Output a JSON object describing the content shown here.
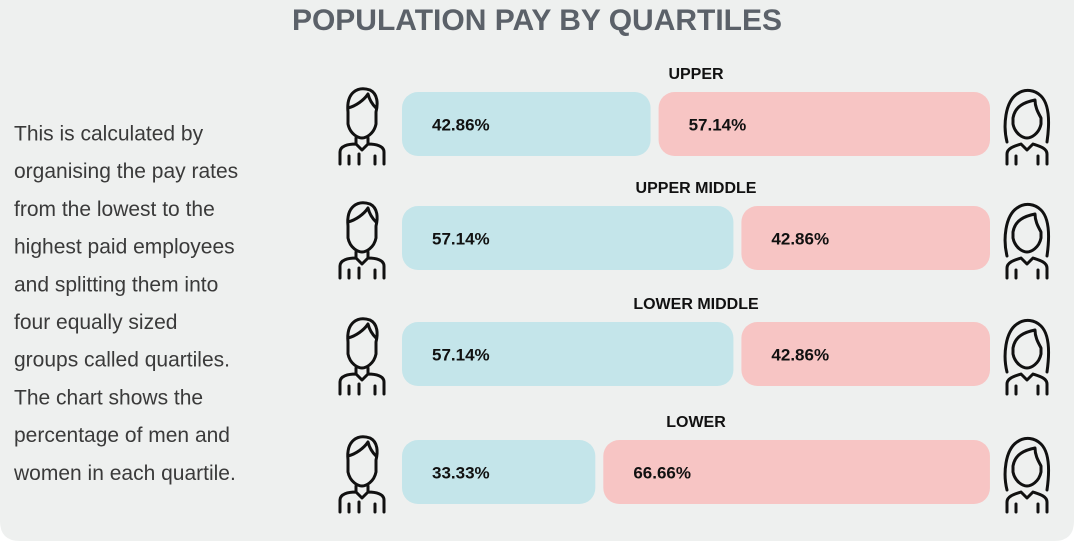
{
  "chart_data": {
    "type": "bar",
    "orientation": "horizontal",
    "stacked": true,
    "title": "POPULATION PAY BY QUARTILES",
    "description": [
      "This is calculated by",
      "organising the pay rates",
      "from the lowest to the",
      "highest paid employees",
      "and splitting them into",
      "four equally sized",
      "groups called quartiles.",
      "The chart shows the",
      "percentage of men and",
      "women in each quartile."
    ],
    "categories": [
      "UPPER",
      "UPPER MIDDLE",
      "LOWER MIDDLE",
      "LOWER"
    ],
    "xlim": [
      0,
      100
    ],
    "series": [
      {
        "color": "#c4e5ea",
        "values": [
          42.86,
          57.14,
          57.14,
          33.33
        ],
        "value_labels": [
          "42.86%",
          "57.14%",
          "57.14%",
          "33.33%"
        ]
      },
      {
        "color": "#f7c5c4",
        "values": [
          57.14,
          42.86,
          42.86,
          66.66
        ],
        "value_labels": [
          "57.14%",
          "42.86%",
          "42.86%",
          "66.66%"
        ]
      }
    ]
  }
}
